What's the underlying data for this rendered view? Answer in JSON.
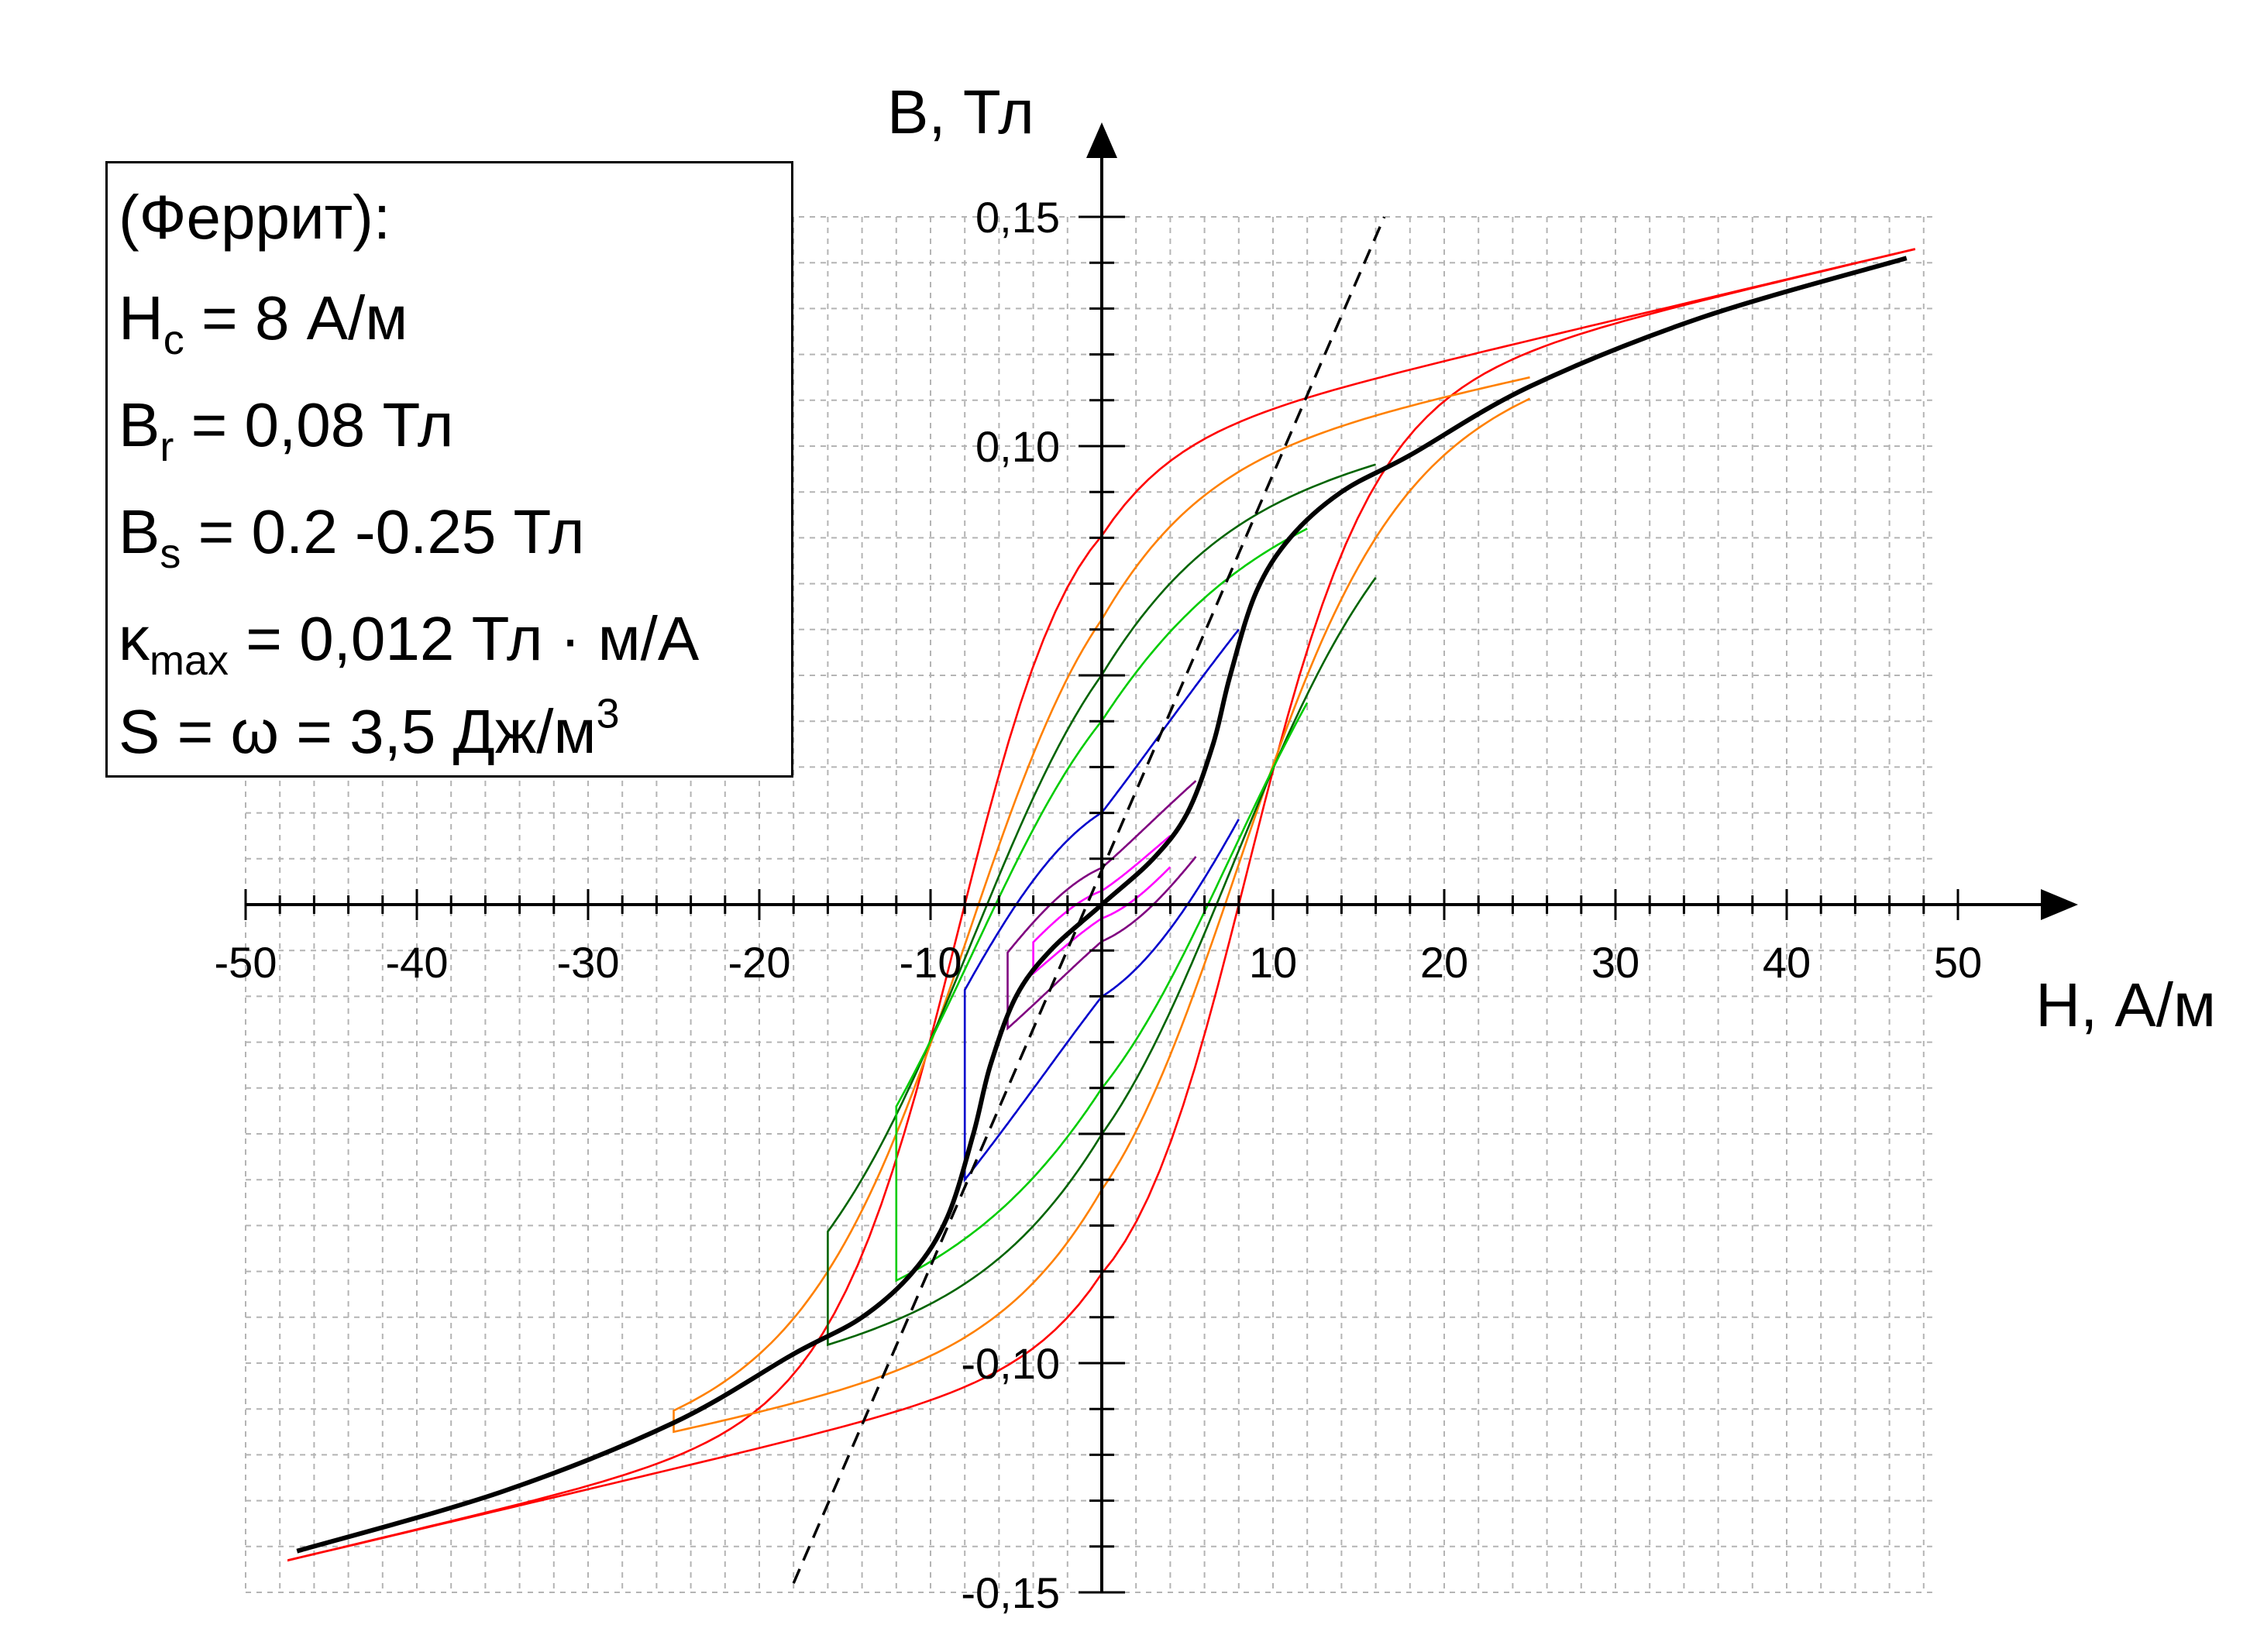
{
  "chart_data": {
    "type": "line",
    "xlabel": "H, А/м",
    "ylabel": "B, Тл",
    "xlim": [
      -50,
      50
    ],
    "ylim": [
      -0.15,
      0.15
    ],
    "xticks": [
      -50,
      -40,
      -30,
      -20,
      -10,
      10,
      20,
      30,
      40,
      50
    ],
    "xtick_labels": [
      "-50",
      "-40",
      "-30",
      "-20",
      "-10",
      "10",
      "20",
      "30",
      "40",
      "50"
    ],
    "yticks": [
      0.15,
      0.1,
      -0.1,
      -0.15
    ],
    "ytick_labels": [
      "0,15",
      "0,10",
      "-0,10",
      "-0,15"
    ],
    "grid": true,
    "info_box": {
      "title": "(Феррит):",
      "hc": {
        "sym": "H",
        "sub": "c",
        "rest": " = 8 А/м"
      },
      "br": {
        "sym": "B",
        "sub": "r",
        "rest": " = 0,08 Тл"
      },
      "bs": {
        "sym": "B",
        "sub": "s",
        "rest": " = 0.2 -0.25 Тл"
      },
      "kmax": {
        "sym": "κ",
        "sub": "max",
        "rest": " = 0,012 Тл · м/А"
      },
      "s": {
        "text": "S = ω = 3,5 Дж/м",
        "sup": "3"
      }
    },
    "loops": [
      {
        "color": "#ff0000",
        "hmax": 47.5,
        "bmax": 0.143,
        "br": 0.08,
        "hc": 8.0,
        "knee": 0.1
      },
      {
        "color": "#ff8000",
        "hmax": 25.0,
        "bmax": 0.115,
        "br": 0.062,
        "hc": 7.2,
        "knee": 0.095
      },
      {
        "color": "#006400",
        "hmax": 16.0,
        "bmax": 0.096,
        "br": 0.05,
        "hc": 6.7,
        "knee": 0.086
      },
      {
        "color": "#00cc00",
        "hmax": 12.0,
        "bmax": 0.082,
        "br": 0.04,
        "hc": 6.2,
        "knee": 0.075
      },
      {
        "color": "#0000cc",
        "hmax": 8.0,
        "bmax": 0.06,
        "br": 0.02,
        "hc": 5.0,
        "knee": 0.05
      },
      {
        "color": "#800080",
        "hmax": 5.5,
        "bmax": 0.027,
        "br": 0.008,
        "hc": 3.0,
        "knee": 0.022
      },
      {
        "color": "#ff00ff",
        "hmax": 4.0,
        "bmax": 0.015,
        "br": 0.003,
        "hc": 1.5,
        "knee": 0.012
      }
    ],
    "initial_curve": {
      "color": "#000000",
      "points": [
        [
          0,
          0
        ],
        [
          3,
          0.01
        ],
        [
          5,
          0.02
        ],
        [
          6.5,
          0.035
        ],
        [
          7.5,
          0.05
        ],
        [
          9,
          0.068
        ],
        [
          11,
          0.08
        ],
        [
          14,
          0.09
        ],
        [
          18,
          0.098
        ],
        [
          25,
          0.113
        ],
        [
          35,
          0.128
        ],
        [
          47,
          0.141
        ]
      ]
    },
    "max_permeability_line": {
      "color": "#000000",
      "dash": true,
      "points": [
        [
          -18,
          -0.148
        ],
        [
          16.5,
          0.15
        ]
      ]
    }
  }
}
